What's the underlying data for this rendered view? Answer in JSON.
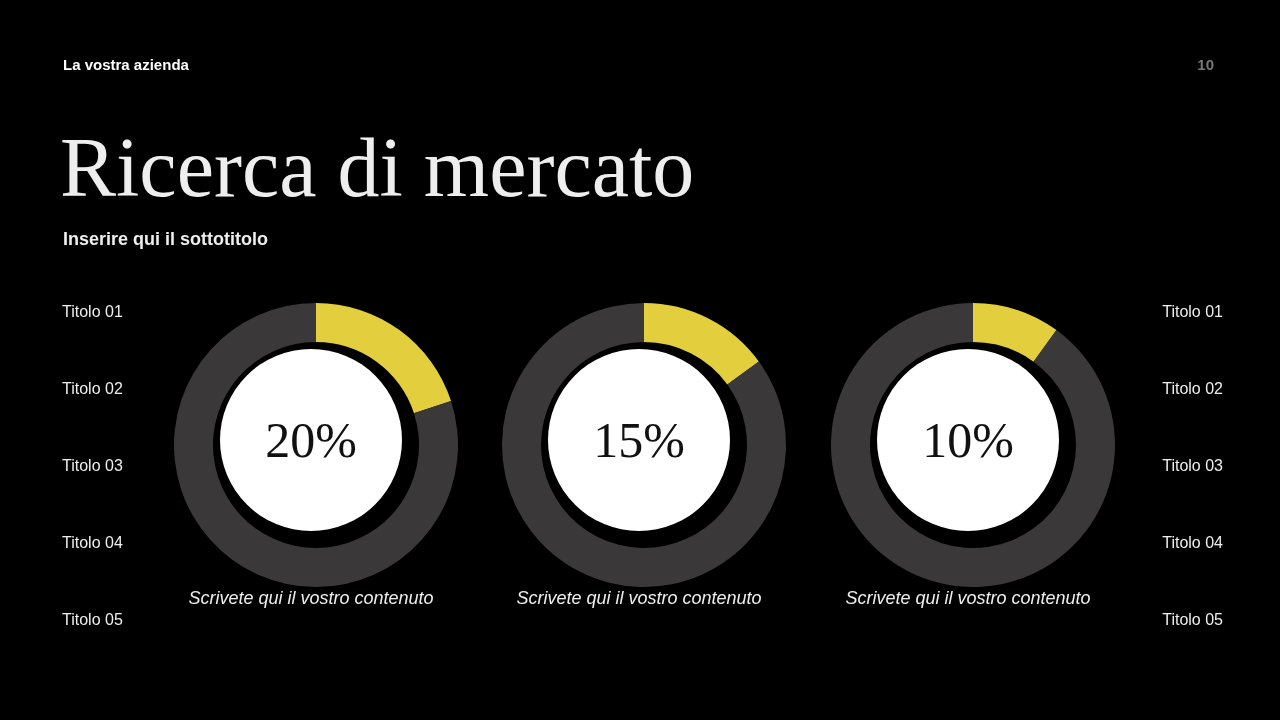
{
  "chart_data": [
    {
      "type": "other",
      "title": "Ricerca di mercato",
      "subtitle": "Inserire qui il sottotitolo",
      "annotations": [
        "La vostra azienda",
        "10",
        "Titolo 01",
        "Titolo 02",
        "Titolo 03",
        "Titolo 04",
        "Titolo 05",
        "Titolo 01",
        "Titolo 02",
        "Titolo 03",
        "Titolo 04",
        "Titolo 05"
      ]
    },
    {
      "type": "donut",
      "categories": [
        null,
        null
      ],
      "values": [
        20,
        80
      ],
      "colors": [
        "#e3cf3e",
        "#3a3839"
      ],
      "annotations": [
        "20%",
        "Scrivete qui il vostro contenuto"
      ]
    },
    {
      "type": "donut",
      "categories": [
        null,
        null
      ],
      "values": [
        15,
        85
      ],
      "colors": [
        "#e3cf3e",
        "#3a3839"
      ],
      "annotations": [
        "15%",
        "Scrivete qui il vostro contenuto"
      ]
    },
    {
      "type": "donut",
      "categories": [
        null,
        null
      ],
      "values": [
        10,
        90
      ],
      "colors": [
        "#e3cf3e",
        "#3a3839"
      ],
      "annotations": [
        "10%",
        "Scrivete qui il vostro contenuto"
      ]
    }
  ]
}
